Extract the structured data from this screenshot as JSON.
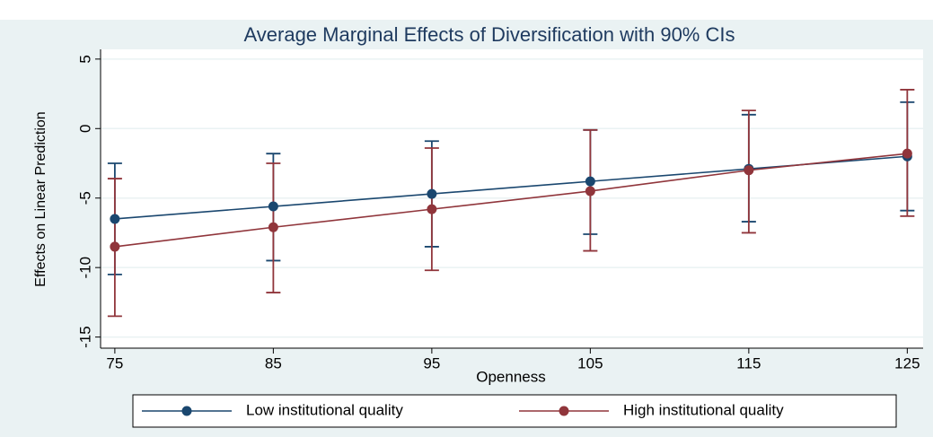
{
  "chart_data": {
    "type": "line",
    "title": "Average Marginal Effects of Diversification with 90% CIs",
    "x_label": "Openness",
    "y_label": "Effects on Linear Prediction",
    "x": [
      75,
      85,
      95,
      105,
      115,
      125
    ],
    "series": [
      {
        "name": "Low institutional quality",
        "color": "#1a476f",
        "values": [
          -6.5,
          -5.6,
          -4.7,
          -3.8,
          -2.9,
          -2.0
        ],
        "lower": [
          -10.5,
          -9.5,
          -8.5,
          -7.6,
          -6.7,
          -5.9
        ],
        "upper": [
          -2.5,
          -1.8,
          -0.9,
          -0.1,
          1.0,
          1.9
        ]
      },
      {
        "name": "High institutional quality",
        "color": "#90353b",
        "values": [
          -8.5,
          -7.1,
          -5.8,
          -4.5,
          -3.0,
          -1.8
        ],
        "lower": [
          -13.5,
          -11.8,
          -10.2,
          -8.8,
          -7.5,
          -6.3
        ],
        "upper": [
          -3.6,
          -2.5,
          -1.4,
          -0.1,
          1.3,
          2.8
        ]
      }
    ],
    "xlim": [
      74.1,
      126.0
    ],
    "xticks": [
      75,
      85,
      95,
      105,
      115,
      125
    ],
    "ylim": [
      -15.8,
      5.7
    ],
    "yticks": [
      5,
      0,
      -5,
      -10,
      -15
    ],
    "grid": true,
    "legend": "bottom"
  }
}
